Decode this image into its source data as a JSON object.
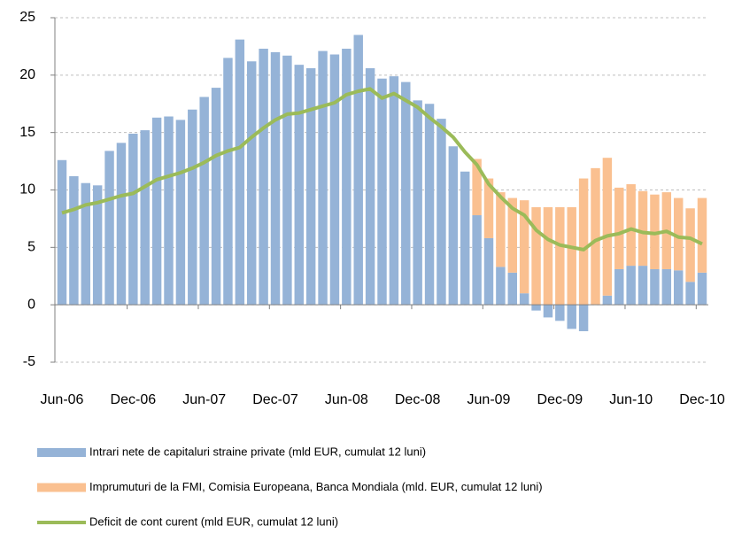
{
  "chart_data": {
    "type": "bar",
    "stacked": true,
    "grid": true,
    "categories": [
      "Jun-06",
      null,
      null,
      null,
      null,
      null,
      "Dec-06",
      null,
      null,
      null,
      null,
      null,
      "Jun-07",
      null,
      null,
      null,
      null,
      null,
      "Dec-07",
      null,
      null,
      null,
      null,
      null,
      "Jun-08",
      null,
      null,
      null,
      null,
      null,
      "Dec-08",
      null,
      null,
      null,
      null,
      null,
      "Jun-09",
      null,
      null,
      null,
      null,
      null,
      "Dec-09",
      null,
      null,
      null,
      null,
      null,
      "Jun-10",
      null,
      null,
      null,
      null,
      null,
      "Dec-10"
    ],
    "ylim": [
      -5,
      25
    ],
    "yticks": [
      -5,
      0,
      5,
      10,
      15,
      20,
      25
    ],
    "series": [
      {
        "name": "Intrari nete de capitaluri straine private (mld EUR, cumulat 12 luni)",
        "type": "bar",
        "color": "#95b3d7",
        "values": [
          12.6,
          11.2,
          10.6,
          10.4,
          13.4,
          14.1,
          14.9,
          15.2,
          16.3,
          16.4,
          16.1,
          17.0,
          18.1,
          18.9,
          21.5,
          23.1,
          21.2,
          22.3,
          22.0,
          21.7,
          20.9,
          20.6,
          22.1,
          21.8,
          22.3,
          23.5,
          20.6,
          19.7,
          19.9,
          19.4,
          17.8,
          17.5,
          16.2,
          13.8,
          11.6,
          7.8,
          5.8,
          3.3,
          2.8,
          1.0,
          -0.5,
          -1.1,
          -1.4,
          -2.1,
          -2.3,
          0,
          0.8,
          3.1,
          3.4,
          3.4,
          3.1,
          3.1,
          3.0,
          2.0,
          2.8
        ]
      },
      {
        "name": "Imprumuturi de la FMI, Comisia Europeana, Banca Mondiala (mld. EUR, cumulat 12 luni)",
        "type": "bar",
        "color": "#fac090",
        "values": [
          0,
          0,
          0,
          0,
          0,
          0,
          0,
          0,
          0,
          0,
          0,
          0,
          0,
          0,
          0,
          0,
          0,
          0,
          0,
          0,
          0,
          0,
          0,
          0,
          0,
          0,
          0,
          0,
          0,
          0,
          0,
          0,
          0,
          0,
          0,
          4.9,
          5.2,
          6.5,
          6.5,
          8.1,
          8.5,
          8.5,
          8.5,
          8.5,
          11.0,
          11.9,
          12.0,
          7.1,
          7.1,
          6.5,
          6.5,
          6.7,
          6.3,
          6.4,
          6.5
        ]
      },
      {
        "name": "Deficit de cont curent (mld EUR, cumulat 12 luni)",
        "type": "line",
        "color": "#9bbb59",
        "values": [
          8.0,
          8.3,
          8.7,
          8.9,
          9.2,
          9.5,
          9.7,
          10.3,
          10.9,
          11.2,
          11.5,
          11.9,
          12.4,
          13.0,
          13.4,
          13.7,
          14.6,
          15.4,
          16.1,
          16.6,
          16.7,
          17.0,
          17.3,
          17.6,
          18.3,
          18.6,
          18.8,
          18.0,
          18.4,
          17.8,
          17.2,
          16.3,
          15.5,
          14.6,
          13.3,
          12.2,
          10.5,
          9.4,
          8.4,
          7.8,
          6.5,
          5.7,
          5.2,
          5.0,
          4.8,
          5.6,
          6.0,
          6.2,
          6.6,
          6.3,
          6.2,
          6.4,
          5.9,
          5.8,
          5.3
        ]
      }
    ]
  }
}
